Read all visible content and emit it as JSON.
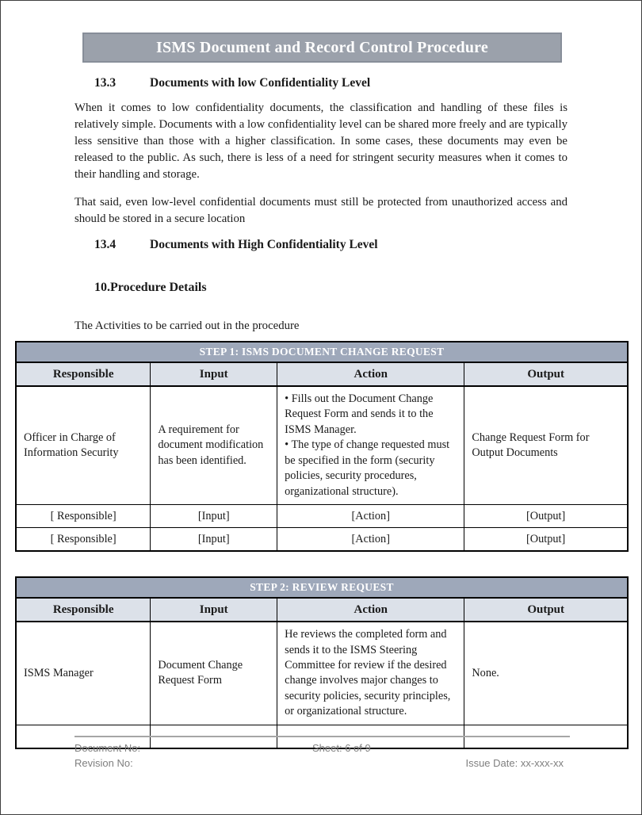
{
  "banner": {
    "title": "ISMS Document and Record Control Procedure"
  },
  "sections": {
    "s133": {
      "number": "13.3",
      "title": "Documents with low Confidentiality Level"
    },
    "s134": {
      "number": "13.4",
      "title": "Documents with High Confidentiality Level"
    },
    "s10": {
      "title": "10.Procedure Details"
    }
  },
  "paragraphs": {
    "p1": "When it comes to low confidentiality documents, the classification and handling of these files is relatively simple. Documents with a low confidentiality level can be shared more freely and are typically less sensitive than those with a higher classification. In some cases, these documents may even be released to the public. As such, there is less of a need for stringent security measures when it comes to their handling and storage.",
    "p2": "That said, even low-level confidential documents must still be protected from unauthorized access and should be stored in a secure location",
    "intro": "The Activities to be carried out in the procedure"
  },
  "step1_table": {
    "title": "STEP 1: ISMS DOCUMENT CHANGE REQUEST",
    "headers": [
      "Responsible",
      "Input",
      "Action",
      "Output"
    ],
    "rows": [
      {
        "responsible": "Officer in Charge of Information Security",
        "input": "A requirement for document modification has been identified.",
        "action": "• Fills out the Document Change Request Form and sends it to the ISMS Manager.\n• The type of change requested must be specified in the form (security policies, security procedures, organizational structure).",
        "output": "Change Request Form for Output Documents"
      },
      {
        "responsible": "[ Responsible]",
        "input": "[Input]",
        "action": "[Action]",
        "output": "[Output]"
      },
      {
        "responsible": "[ Responsible]",
        "input": "[Input]",
        "action": "[Action]",
        "output": "[Output]"
      }
    ]
  },
  "step2_table": {
    "title": "STEP 2: REVIEW REQUEST",
    "headers": [
      "Responsible",
      "Input",
      "Action",
      "Output"
    ],
    "rows": [
      {
        "responsible": "ISMS Manager",
        "input": "Document Change Request Form",
        "action": "He reviews the completed form and sends it to the ISMS Steering Committee for review if the desired change involves major changes to security policies, security principles, or organizational structure.",
        "output": "None."
      },
      {
        "responsible": "",
        "input": "",
        "action": "",
        "output": ""
      }
    ]
  },
  "footer": {
    "document_no": "Document No:",
    "sheet": "Sheet: 6 of 9",
    "revision_no": "Revision No:",
    "issue_date": "Issue Date: xx-xxx-xx"
  },
  "colors": {
    "banner_bg": "#9ba1ab",
    "banner_border": "#878e99",
    "step_band_bg": "#9ea8ba",
    "header_row_bg": "#dce1e9",
    "footer_text": "#7f7f7f",
    "footer_line": "#a6a6a6"
  }
}
